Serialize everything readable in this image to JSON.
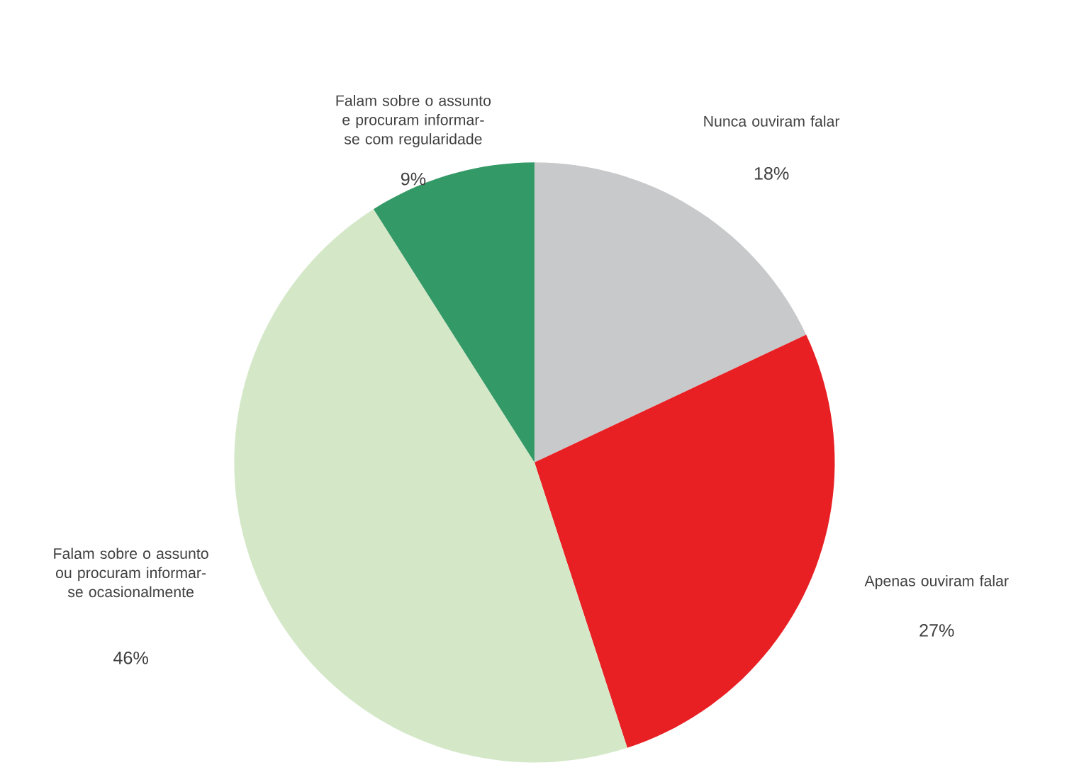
{
  "chart_data": {
    "type": "pie",
    "categories": [
      "Nunca ouviram falar",
      "Apenas ouviram falar",
      "Falam sobre o assunto ou procuram informar-se ocasionalmente",
      "Falam sobre o assunto e procuram informar-se com regularidade"
    ],
    "values": [
      18,
      27,
      46,
      9
    ],
    "colors": [
      "#c8c9cb",
      "#e82024",
      "#d4e8c8",
      "#339966"
    ],
    "value_labels": [
      "18%",
      "27%",
      "46%",
      "9%"
    ]
  }
}
